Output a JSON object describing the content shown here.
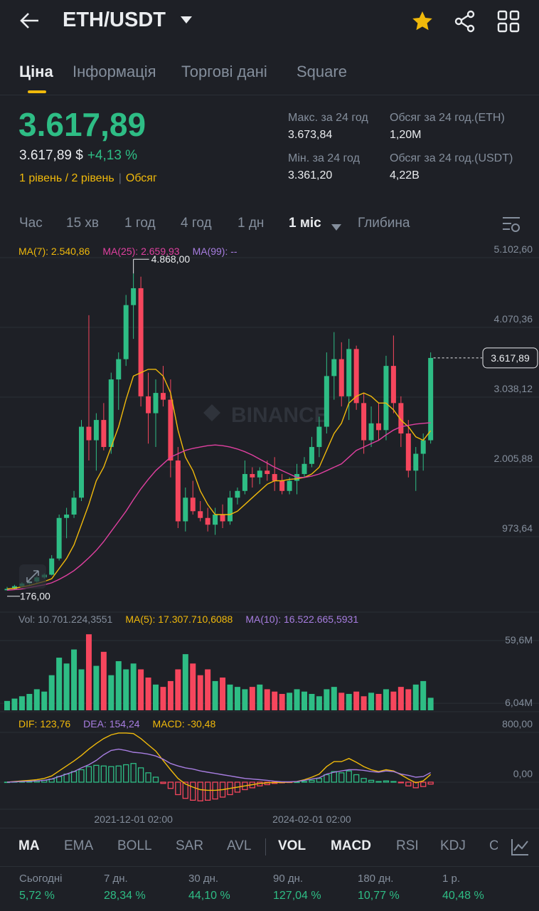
{
  "header": {
    "pair": "ETH/USDT"
  },
  "tabs": [
    "Ціна",
    "Інформація",
    "Торгові дані",
    "Square"
  ],
  "active_tab": 0,
  "price": {
    "last": "3.617,89",
    "usd": "3.617,89 $",
    "change": "+4,13 %",
    "levels": "1 рівень / 2 рівень",
    "volume_link": "Обсяг"
  },
  "stats": [
    {
      "label": "Макс. за 24 год",
      "value": "3.673,84"
    },
    {
      "label": "Обсяг за 24 год.(ETH)",
      "value": "1,20M"
    },
    {
      "label": "Мін. за 24 год",
      "value": "3.361,20"
    },
    {
      "label": "Обсяг за 24 год.(USDT)",
      "value": "4,22B"
    }
  ],
  "intervals": [
    "Час",
    "15 хв",
    "1 год",
    "4 год",
    "1 дн",
    "1 міс",
    "Глибина"
  ],
  "active_interval": 5,
  "chart_data": [
    {
      "type": "candlestick",
      "watermark": "BINANCE",
      "up_color": "#2ebd85",
      "down_color": "#f6465d",
      "ylim": [
        -143,
        5334
      ],
      "yticks": [
        {
          "value": 5102.6,
          "label": "5.102,60"
        },
        {
          "value": 4070.36,
          "label": "4.070,36"
        },
        {
          "value": 3038.12,
          "label": "3.038,12"
        },
        {
          "value": 2005.88,
          "label": "2.005,88"
        },
        {
          "value": 973.64,
          "label": "973,64"
        }
      ],
      "grid": true,
      "open": [
        180,
        200,
        240,
        280,
        310,
        370,
        410,
        650,
        1250,
        1300,
        1550,
        2600,
        2400,
        2700,
        2300,
        3300,
        3600,
        4400,
        4650,
        3050,
        2800,
        3100,
        3000,
        2100,
        1200,
        1550,
        1350,
        1250,
        1150,
        1300,
        1200,
        1550,
        1650,
        1900,
        1850,
        1950,
        1900,
        1800,
        1650,
        1800,
        1900,
        2050,
        2300,
        2600,
        3350,
        3600,
        3050,
        3750,
        2950,
        2400,
        2650,
        2550,
        3500,
        2950,
        2500,
        1950,
        2200,
        2400
      ],
      "high": [
        230,
        260,
        300,
        330,
        390,
        430,
        700,
        1300,
        1400,
        1650,
        2700,
        4250,
        2800,
        2950,
        3400,
        3700,
        4550,
        4868,
        4820,
        3400,
        3300,
        3500,
        3300,
        2300,
        1700,
        1800,
        1500,
        1400,
        1400,
        1450,
        1650,
        1700,
        2100,
        2000,
        2000,
        2100,
        2150,
        1900,
        1850,
        2050,
        2150,
        2450,
        2750,
        3700,
        4000,
        3850,
        3900,
        3800,
        3100,
        2900,
        2950,
        3650,
        3950,
        3050,
        2700,
        2300,
        2500,
        3700
      ],
      "low": [
        176,
        190,
        230,
        260,
        290,
        350,
        400,
        620,
        950,
        1250,
        1500,
        2100,
        1950,
        2250,
        2200,
        2850,
        3500,
        3900,
        2900,
        2350,
        2300,
        2900,
        1850,
        1100,
        1050,
        1300,
        1200,
        1050,
        1000,
        1100,
        1150,
        1450,
        1600,
        1700,
        1750,
        1800,
        1650,
        1600,
        1600,
        1600,
        1850,
        2000,
        2150,
        2500,
        3000,
        2900,
        2700,
        2850,
        2200,
        2300,
        2400,
        2400,
        2800,
        2300,
        1850,
        1650,
        1950,
        2350
      ],
      "close": [
        200,
        240,
        280,
        310,
        370,
        410,
        650,
        1250,
        1300,
        1550,
        2600,
        2400,
        2700,
        2300,
        3300,
        3600,
        4400,
        4650,
        3050,
        2800,
        3100,
        3000,
        2100,
        1200,
        1550,
        1350,
        1250,
        1150,
        1300,
        1200,
        1550,
        1650,
        1900,
        1850,
        1950,
        1900,
        1800,
        1650,
        1800,
        1900,
        2050,
        2300,
        2600,
        3350,
        3600,
        3050,
        3750,
        2950,
        2400,
        2650,
        2550,
        3500,
        2950,
        2500,
        1950,
        2200,
        2400,
        3617.89
      ],
      "high_label": {
        "index": 17,
        "label": "4.868,00"
      },
      "low_label": {
        "index": 0,
        "label": "176,00"
      },
      "last_label": {
        "index": 57,
        "label": "3.617,89"
      },
      "series": [
        {
          "name": "MA(7): 2.540,86",
          "color": "#f0b90b",
          "values": [
            200,
            210,
            230,
            250,
            280,
            310,
            350,
            500,
            650,
            850,
            1150,
            1450,
            1800,
            2000,
            2300,
            2600,
            3000,
            3350,
            3400,
            3450,
            3450,
            3350,
            3100,
            2550,
            2150,
            1950,
            1650,
            1450,
            1300,
            1300,
            1300,
            1350,
            1450,
            1550,
            1650,
            1750,
            1800,
            1800,
            1820,
            1830,
            1850,
            1900,
            2000,
            2250,
            2500,
            2650,
            2950,
            3050,
            3100,
            3050,
            2950,
            2950,
            2850,
            2700,
            2600,
            2450,
            2400,
            2540.86
          ]
        },
        {
          "name": "MA(25): 2.659,93",
          "color": "#e040a0",
          "values": [
            180,
            190,
            200,
            220,
            240,
            260,
            290,
            340,
            400,
            470,
            560,
            660,
            770,
            900,
            1050,
            1200,
            1350,
            1520,
            1680,
            1820,
            1950,
            2050,
            2150,
            2200,
            2250,
            2280,
            2300,
            2320,
            2330,
            2320,
            2300,
            2270,
            2230,
            2180,
            2120,
            2060,
            2000,
            1950,
            1900,
            1850,
            1850,
            1870,
            1900,
            1950,
            2000,
            2050,
            2150,
            2250,
            2300,
            2350,
            2400,
            2480,
            2550,
            2600,
            2620,
            2640,
            2650,
            2659.93
          ]
        }
      ],
      "extra_legend": [
        {
          "text": "MA(99): --",
          "color": "#a77de0"
        }
      ]
    },
    {
      "type": "volume",
      "up_color": "#2ebd85",
      "down_color": "#f6465d",
      "ylim": [
        0,
        64.5
      ],
      "yticks": [
        {
          "value": 59.6,
          "label": "59,6M"
        },
        {
          "value": 6.04,
          "label": "6,04M"
        }
      ],
      "grid": true,
      "values": [
        8,
        10,
        12,
        14,
        18,
        16,
        30,
        45,
        40,
        52,
        35,
        65,
        38,
        50,
        30,
        42,
        35,
        40,
        35,
        28,
        22,
        20,
        25,
        35,
        48,
        40,
        30,
        35,
        25,
        28,
        22,
        20,
        18,
        20,
        22,
        18,
        16,
        14,
        15,
        18,
        16,
        14,
        12,
        18,
        20,
        15,
        14,
        16,
        12,
        15,
        14,
        18,
        16,
        20,
        18,
        22,
        25,
        10.7
      ],
      "legend": [
        {
          "text": "Vol: 10.701.224,3551",
          "color": "#848e9c"
        },
        {
          "text": "MA(5): 17.307.710,6088",
          "color": "#f0b90b"
        },
        {
          "text": "MA(10): 16.522.665,5931",
          "color": "#a77de0"
        }
      ]
    },
    {
      "type": "macd",
      "up_color": "#2ebd85",
      "down_color": "#f6465d",
      "ylim": [
        -430,
        820
      ],
      "yticks": [
        {
          "value": 800,
          "label": "800,00"
        },
        {
          "value": 0,
          "label": "0,00"
        }
      ],
      "grid": true,
      "categories": [
        null,
        null,
        null,
        null,
        null,
        null,
        null,
        null,
        null,
        null,
        null,
        null,
        null,
        null,
        null,
        null,
        null,
        "2021-12-01 02:00",
        null,
        null,
        null,
        null,
        null,
        null,
        null,
        null,
        null,
        null,
        null,
        null,
        null,
        null,
        null,
        null,
        null,
        null,
        null,
        null,
        null,
        null,
        null,
        "2024-02-01 02:00",
        null,
        null,
        null,
        null,
        null,
        null,
        null,
        null,
        null,
        null,
        null,
        null,
        null,
        null,
        null,
        null
      ],
      "histogram": {
        "name": "MACD: -30,48",
        "values": [
          0,
          5,
          10,
          15,
          20,
          30,
          50,
          90,
          130,
          170,
          200,
          250,
          270,
          260,
          250,
          260,
          280,
          300,
          230,
          150,
          80,
          -20,
          -100,
          -200,
          -260,
          -290,
          -300,
          -290,
          -270,
          -240,
          -200,
          -160,
          -120,
          -90,
          -60,
          -40,
          -20,
          -10,
          -5,
          0,
          10,
          30,
          60,
          120,
          170,
          150,
          180,
          120,
          60,
          30,
          10,
          20,
          10,
          -10,
          -60,
          -90,
          -70,
          -30.48
        ]
      },
      "series": [
        {
          "name": "DIF: 123,76",
          "color": "#f0b90b",
          "values": [
            0,
            10,
            20,
            30,
            40,
            60,
            100,
            180,
            260,
            340,
            430,
            530,
            620,
            700,
            760,
            790,
            790,
            780,
            700,
            600,
            500,
            350,
            200,
            60,
            -30,
            -80,
            -120,
            -130,
            -130,
            -120,
            -100,
            -80,
            -60,
            -40,
            -20,
            -10,
            -5,
            -5,
            0,
            10,
            40,
            80,
            130,
            250,
            330,
            330,
            380,
            320,
            250,
            200,
            170,
            200,
            180,
            120,
            50,
            -10,
            20,
            123.76
          ]
        },
        {
          "name": "DEA: 154,24",
          "color": "#a77de0",
          "values": [
            0,
            5,
            10,
            15,
            20,
            30,
            50,
            90,
            130,
            170,
            230,
            280,
            350,
            440,
            510,
            530,
            510,
            480,
            470,
            450,
            420,
            370,
            300,
            260,
            230,
            210,
            180,
            160,
            140,
            120,
            100,
            80,
            60,
            50,
            40,
            30,
            15,
            5,
            5,
            10,
            30,
            50,
            70,
            130,
            160,
            180,
            200,
            200,
            190,
            170,
            160,
            180,
            170,
            130,
            110,
            80,
            90,
            154.24
          ]
        }
      ]
    }
  ],
  "indicators": [
    "MA",
    "EMA",
    "BOLL",
    "SAR",
    "AVL",
    "VOL",
    "MACD",
    "RSI",
    "KDJ",
    "C"
  ],
  "active_indicators": [
    0,
    5,
    6
  ],
  "performance": [
    {
      "label": "Сьогодні",
      "value": "5,72 %"
    },
    {
      "label": "7 дн.",
      "value": "28,34 %"
    },
    {
      "label": "30 дн.",
      "value": "44,10 %"
    },
    {
      "label": "90 дн.",
      "value": "127,04 %"
    },
    {
      "label": "180 дн.",
      "value": "10,77 %"
    },
    {
      "label": "1 р.",
      "value": "40,48 %"
    }
  ]
}
